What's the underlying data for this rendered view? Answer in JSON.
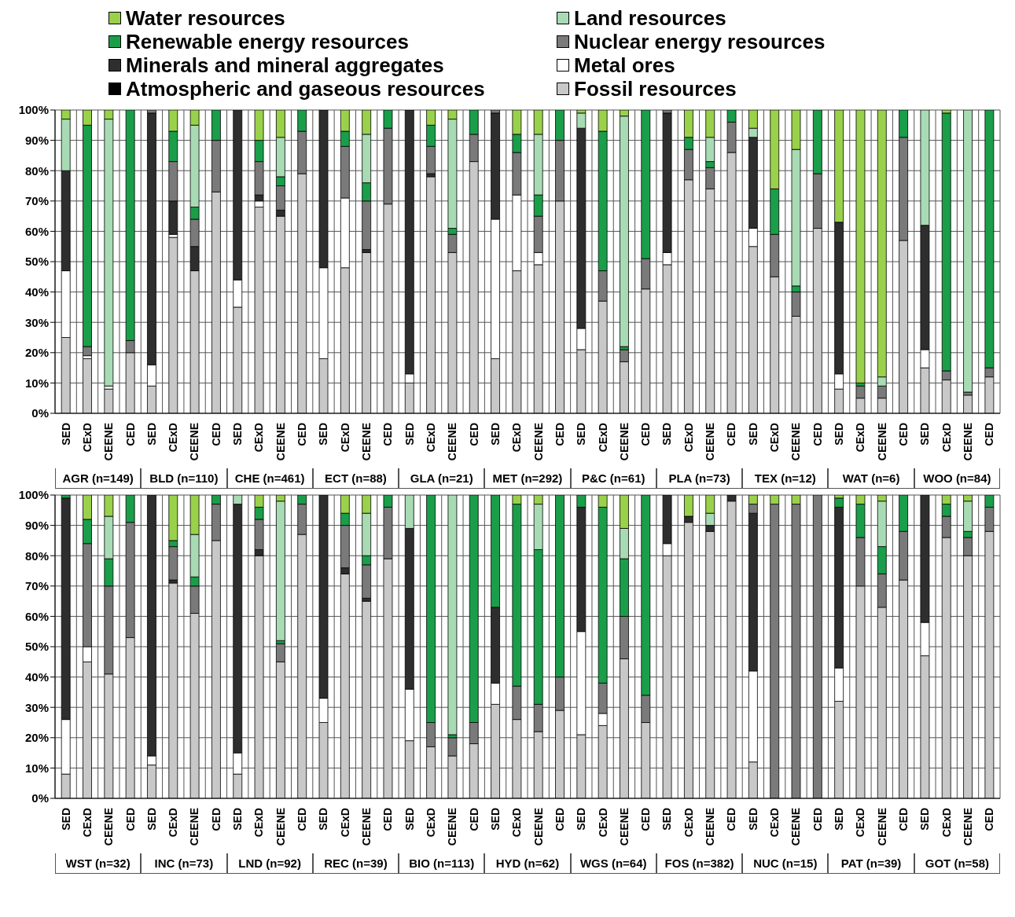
{
  "chart_data": [
    {
      "type": "bar",
      "stacked": true,
      "legend": "top",
      "grid": true,
      "ylim": [
        0,
        100
      ],
      "yticks": [
        {
          "value": 0,
          "label": "0%"
        },
        {
          "value": 10,
          "label": "10%"
        },
        {
          "value": 20,
          "label": "20%"
        },
        {
          "value": 30,
          "label": "30%"
        },
        {
          "value": 40,
          "label": "40%"
        },
        {
          "value": 50,
          "label": "50%"
        },
        {
          "value": 60,
          "label": "60%"
        },
        {
          "value": 70,
          "label": "70%"
        },
        {
          "value": 80,
          "label": "80%"
        },
        {
          "value": 90,
          "label": "90%"
        },
        {
          "value": 100,
          "label": "100%"
        }
      ],
      "categories": [
        "SED",
        "CExD",
        "CEENE",
        "CED",
        "SED",
        "CExD",
        "CEENE",
        "CED",
        "SED",
        "CExD",
        "CEENE",
        "CED",
        "SED",
        "CExD",
        "CEENE",
        "CED",
        "SED",
        "CExD",
        "CEENE",
        "CED",
        "SED",
        "CExD",
        "CEENE",
        "CED",
        "SED",
        "CExD",
        "CEENE",
        "CED",
        "SED",
        "CExD",
        "CEENE",
        "CED",
        "SED",
        "CExD",
        "CEENE",
        "CED",
        "SED",
        "CExD",
        "CEENE",
        "CED",
        "SED",
        "CExD",
        "CEENE",
        "CED"
      ],
      "annotations": [
        "AGR (n=149)",
        "BLD (n=110)",
        "CHE (n=461)",
        "ECT (n=88)",
        "GLA (n=21)",
        "MET (n=292)",
        "P&C (n=61)",
        "PLA (n=73)",
        "TEX (n=12)",
        "WAT (n=6)",
        "WOO (n=84)"
      ],
      "series": [
        {
          "name": "Fossil resources",
          "color": "#c8c8c8",
          "values": [
            25,
            18,
            8,
            20,
            9,
            58,
            47,
            73,
            35,
            68,
            65,
            79,
            18,
            48,
            53,
            69,
            10,
            78,
            53,
            83,
            18,
            47,
            49,
            70,
            21,
            37,
            17,
            41,
            49,
            77,
            74,
            86,
            55,
            45,
            32,
            61,
            8,
            5,
            5,
            57,
            15,
            11,
            6,
            12
          ]
        },
        {
          "name": "Atmospheric and gaseous resources",
          "color": "#000000",
          "values": [
            0,
            0,
            0,
            0,
            0,
            0,
            0,
            0,
            0,
            0,
            0,
            0,
            0,
            0,
            0,
            0,
            0,
            0,
            0,
            0,
            0,
            0,
            0,
            0,
            0,
            0,
            0,
            0,
            0,
            0,
            0,
            0,
            0,
            0,
            0,
            0,
            0,
            0,
            0,
            0,
            0,
            0,
            0,
            0
          ]
        },
        {
          "name": "Metal ores",
          "color": "#ffffff",
          "values": [
            22,
            1,
            1,
            0,
            7,
            1,
            0,
            0,
            9,
            2,
            0,
            0,
            30,
            23,
            0,
            0,
            3,
            0,
            0,
            0,
            46,
            25,
            4,
            0,
            7,
            0,
            0,
            0,
            4,
            0,
            0,
            0,
            6,
            0,
            0,
            0,
            5,
            0,
            0,
            0,
            6,
            0,
            0,
            0
          ]
        },
        {
          "name": "Minerals and mineral aggregates",
          "color": "#2e2e2e",
          "values": [
            33,
            0,
            0,
            0,
            83,
            11,
            8,
            0,
            56,
            2,
            2,
            0,
            52,
            0,
            1,
            0,
            87,
            1,
            0,
            0,
            35,
            0,
            0,
            0,
            66,
            0,
            0,
            0,
            46,
            0,
            0,
            0,
            30,
            0,
            0,
            0,
            50,
            0,
            0,
            0,
            41,
            0,
            0,
            0
          ]
        },
        {
          "name": "Nuclear energy resources",
          "color": "#7a7a7a",
          "values": [
            0,
            3,
            0,
            4,
            1,
            13,
            9,
            17,
            0,
            11,
            8,
            14,
            0,
            17,
            16,
            25,
            0,
            9,
            6,
            9,
            1,
            14,
            12,
            20,
            0,
            10,
            4,
            10,
            1,
            10,
            7,
            10,
            0,
            14,
            8,
            18,
            0,
            4,
            4,
            34,
            0,
            3,
            1,
            3
          ]
        },
        {
          "name": "Renewable energy resources",
          "color": "#1a9e4a",
          "values": [
            0,
            73,
            0,
            76,
            0,
            10,
            4,
            10,
            0,
            7,
            3,
            7,
            0,
            5,
            6,
            6,
            0,
            7,
            2,
            8,
            0,
            6,
            7,
            10,
            0,
            46,
            1,
            49,
            0,
            4,
            2,
            4,
            0,
            15,
            2,
            21,
            0,
            1,
            0,
            9,
            0,
            85,
            0,
            85
          ]
        },
        {
          "name": "Land resources",
          "color": "#a8dbb4",
          "values": [
            17,
            0,
            88,
            0,
            0,
            0,
            27,
            0,
            0,
            0,
            13,
            0,
            0,
            0,
            16,
            0,
            0,
            0,
            36,
            0,
            0,
            0,
            20,
            0,
            5,
            0,
            76,
            0,
            0,
            0,
            8,
            0,
            3,
            0,
            45,
            0,
            0,
            0,
            3,
            0,
            38,
            0,
            93,
            0
          ]
        },
        {
          "name": "Water resources",
          "color": "#9ad14b",
          "values": [
            3,
            5,
            3,
            0,
            0,
            7,
            5,
            0,
            0,
            10,
            9,
            0,
            0,
            7,
            8,
            0,
            0,
            5,
            3,
            0,
            0,
            8,
            8,
            0,
            1,
            7,
            2,
            0,
            0,
            9,
            9,
            0,
            6,
            26,
            13,
            0,
            37,
            90,
            88,
            0,
            0,
            1,
            0,
            0
          ]
        }
      ]
    },
    {
      "type": "bar",
      "stacked": true,
      "grid": true,
      "ylim": [
        0,
        100
      ],
      "yticks": [
        {
          "value": 0,
          "label": "0%"
        },
        {
          "value": 10,
          "label": "10%"
        },
        {
          "value": 20,
          "label": "20%"
        },
        {
          "value": 30,
          "label": "30%"
        },
        {
          "value": 40,
          "label": "40%"
        },
        {
          "value": 50,
          "label": "50%"
        },
        {
          "value": 60,
          "label": "60%"
        },
        {
          "value": 70,
          "label": "70%"
        },
        {
          "value": 80,
          "label": "80%"
        },
        {
          "value": 90,
          "label": "90%"
        },
        {
          "value": 100,
          "label": "100%"
        }
      ],
      "categories": [
        "SED",
        "CExD",
        "CEENE",
        "CED",
        "SED",
        "CExD",
        "CEENE",
        "CED",
        "SED",
        "CExD",
        "CEENE",
        "CED",
        "SED",
        "CExD",
        "CEENE",
        "CED",
        "SED",
        "CExD",
        "CEENE",
        "CED",
        "SED",
        "CExD",
        "CEENE",
        "CED",
        "SED",
        "CExD",
        "CEENE",
        "CED",
        "SED",
        "CExD",
        "CEENE",
        "CED",
        "SED",
        "CExD",
        "CEENE",
        "CED",
        "SED",
        "CExD",
        "CEENE",
        "CED",
        "SED",
        "CExD",
        "CEENE",
        "CED"
      ],
      "annotations": [
        "WST (n=32)",
        "INC (n=73)",
        "LND (n=92)",
        "REC (n=39)",
        "BIO (n=113)",
        "HYD (n=62)",
        "WGS (n=64)",
        "FOS (n=382)",
        "NUC (n=15)",
        "PAT (n=39)",
        "GOT (n=58)"
      ],
      "series": [
        {
          "color": "#c8c8c8",
          "values": [
            8,
            45,
            41,
            53,
            11,
            71,
            61,
            85,
            8,
            80,
            45,
            87,
            25,
            74,
            65,
            79,
            19,
            17,
            14,
            18,
            31,
            26,
            22,
            29,
            21,
            24,
            46,
            25,
            80,
            91,
            88,
            98,
            12,
            0,
            0,
            0,
            32,
            70,
            63,
            72,
            47,
            86,
            80,
            88
          ]
        },
        {
          "color": "#000000",
          "values": [
            0,
            0,
            0,
            0,
            0,
            0,
            0,
            0,
            0,
            0,
            0,
            0,
            0,
            0,
            0,
            0,
            0,
            0,
            0,
            0,
            0,
            0,
            0,
            0,
            0,
            0,
            0,
            0,
            0,
            0,
            0,
            0,
            0,
            0,
            0,
            0,
            0,
            0,
            0,
            0,
            0,
            0,
            0,
            0
          ]
        },
        {
          "color": "#ffffff",
          "values": [
            18,
            5,
            0,
            0,
            3,
            0,
            0,
            0,
            7,
            0,
            0,
            0,
            8,
            0,
            0,
            0,
            17,
            0,
            0,
            0,
            7,
            0,
            0,
            0,
            34,
            4,
            0,
            0,
            4,
            0,
            0,
            0,
            30,
            0,
            0,
            0,
            11,
            0,
            0,
            0,
            11,
            0,
            0,
            0
          ]
        },
        {
          "color": "#2e2e2e",
          "values": [
            73,
            0,
            0,
            0,
            86,
            1,
            0,
            0,
            82,
            2,
            0,
            0,
            67,
            2,
            1,
            0,
            53,
            0,
            0,
            0,
            25,
            0,
            0,
            0,
            41,
            0,
            0,
            0,
            16,
            2,
            2,
            2,
            52,
            0,
            0,
            0,
            53,
            0,
            0,
            0,
            42,
            0,
            0,
            0
          ]
        },
        {
          "color": "#7a7a7a",
          "values": [
            0,
            34,
            29,
            38,
            0,
            11,
            9,
            12,
            0,
            10,
            6,
            10,
            0,
            14,
            11,
            17,
            0,
            8,
            6,
            7,
            0,
            11,
            9,
            11,
            0,
            10,
            14,
            9,
            0,
            0,
            0,
            0,
            3,
            97,
            97,
            100,
            0,
            16,
            11,
            16,
            0,
            7,
            6,
            8
          ]
        },
        {
          "color": "#1a9e4a",
          "values": [
            1,
            8,
            9,
            9,
            0,
            2,
            3,
            3,
            0,
            4,
            1,
            3,
            0,
            4,
            3,
            4,
            0,
            75,
            1,
            75,
            37,
            60,
            51,
            60,
            4,
            58,
            19,
            66,
            0,
            0,
            0,
            0,
            0,
            0,
            0,
            0,
            3,
            11,
            9,
            12,
            0,
            4,
            2,
            4
          ]
        },
        {
          "color": "#a8dbb4",
          "values": [
            0,
            0,
            14,
            0,
            0,
            0,
            14,
            0,
            3,
            0,
            46,
            0,
            0,
            0,
            14,
            0,
            11,
            0,
            79,
            0,
            0,
            0,
            15,
            0,
            0,
            0,
            10,
            0,
            0,
            0,
            4,
            0,
            0,
            0,
            0,
            0,
            0,
            0,
            15,
            0,
            0,
            0,
            10,
            0
          ]
        },
        {
          "color": "#9ad14b",
          "values": [
            0,
            8,
            7,
            0,
            0,
            15,
            13,
            0,
            0,
            4,
            2,
            0,
            0,
            6,
            6,
            0,
            0,
            0,
            0,
            0,
            0,
            3,
            3,
            0,
            0,
            4,
            11,
            0,
            0,
            7,
            6,
            0,
            3,
            3,
            3,
            0,
            1,
            3,
            2,
            0,
            0,
            3,
            2,
            0
          ]
        }
      ]
    }
  ]
}
